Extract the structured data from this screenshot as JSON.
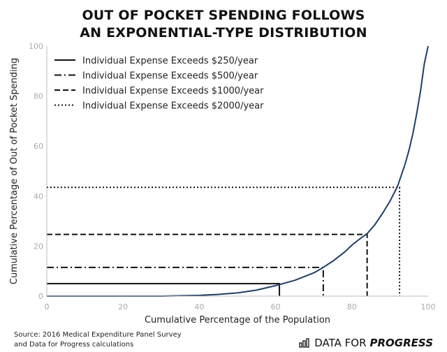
{
  "title_line1": "OUT OF POCKET SPENDING FOLLOWS",
  "title_line2": "AN EXPONENTIAL-TYPE DISTRIBUTION",
  "source_line1": "Source: 2016 Medical Expenditure Panel Survey",
  "source_line2": "and Data for Progress calculations",
  "brand": {
    "light": "DATA FOR",
    "strong": "PROGRESS",
    "icon": "bar-chart-icon"
  },
  "chart_data": {
    "type": "line",
    "xlabel": "Cumulative Percentage of the Population",
    "ylabel": "Cumulative Percentage of Out of Pocket Spending",
    "xlim": [
      0,
      100
    ],
    "ylim": [
      0,
      100
    ],
    "xticks": [
      0,
      20,
      40,
      60,
      80,
      100
    ],
    "yticks": [
      0,
      20,
      40,
      60,
      80,
      100
    ],
    "grid": false,
    "legend_position": "top-left",
    "curve": {
      "color": "#1f3f66",
      "x": [
        0,
        10,
        20,
        30,
        40,
        45,
        50,
        55,
        60,
        65,
        70,
        72,
        75,
        78,
        80,
        82,
        84,
        86,
        88,
        90,
        92,
        94,
        95,
        96,
        97,
        98,
        99,
        100
      ],
      "y": [
        0,
        0,
        0,
        0,
        0.3,
        0.7,
        1.3,
        2.4,
        4.2,
        6.3,
        9.3,
        11,
        14,
        17.5,
        20.4,
        22.8,
        25,
        28.5,
        33,
        38,
        44,
        53,
        58.5,
        65,
        73,
        82,
        93,
        100
      ]
    },
    "thresholds": [
      {
        "name": "Individual Expense Exceeds $250/year",
        "x": 61,
        "y": 5,
        "style": "solid"
      },
      {
        "name": "Individual Expense Exceeds $500/year",
        "x": 72.5,
        "y": 11.5,
        "style": "dashdot"
      },
      {
        "name": "Individual Expense Exceeds $1000/year",
        "x": 84,
        "y": 24.7,
        "style": "dashed"
      },
      {
        "name": "Individual Expense Exceeds $2000/year",
        "x": 92.5,
        "y": 43.5,
        "style": "dotted"
      }
    ]
  }
}
